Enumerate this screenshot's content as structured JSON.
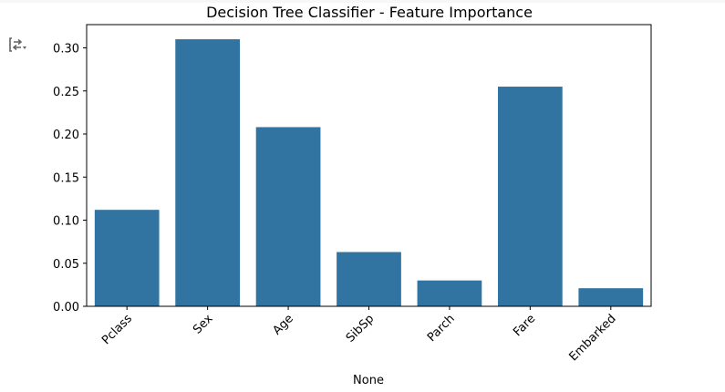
{
  "chart_data": {
    "type": "bar",
    "title": "Decision Tree Classifier - Feature Importance",
    "xlabel": "None",
    "ylabel": "",
    "categories": [
      "Pclass",
      "Sex",
      "Age",
      "SibSp",
      "Parch",
      "Fare",
      "Embarked"
    ],
    "values": [
      0.112,
      0.31,
      0.208,
      0.063,
      0.03,
      0.255,
      0.021
    ],
    "ylim": [
      0,
      0.327
    ],
    "yticks": [
      0.0,
      0.05,
      0.1,
      0.15,
      0.2,
      0.25,
      0.3
    ],
    "ytick_labels": [
      "0.00",
      "0.05",
      "0.10",
      "0.15",
      "0.20",
      "0.25",
      "0.30"
    ],
    "bar_color": "#3274a1",
    "grid": false,
    "legend": "none"
  },
  "ui": {
    "output_toggle_icon": "output-toggle-icon"
  }
}
